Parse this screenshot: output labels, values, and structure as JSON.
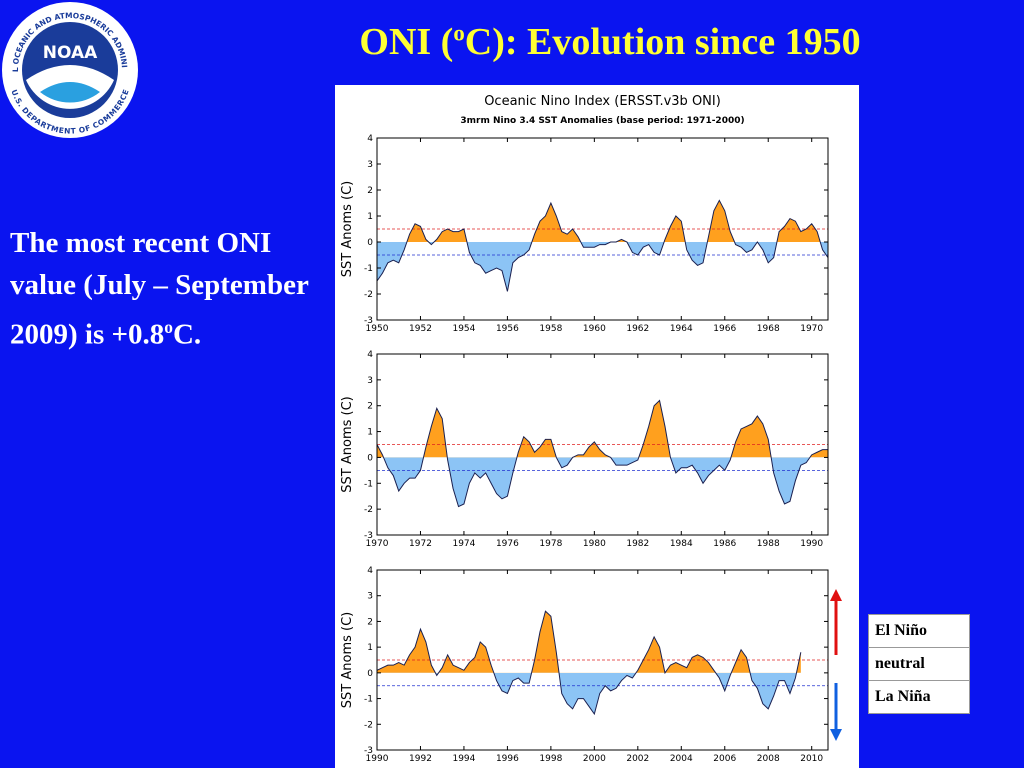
{
  "logo": {
    "name": "NOAA",
    "ring_top": "NATIONAL OCEANIC AND ATMOSPHERIC ADMINISTRATION",
    "ring_bottom": "U.S. DEPARTMENT OF COMMERCE"
  },
  "slide": {
    "title": {
      "before": "ONI (",
      "sup": "o",
      "after": "C): Evolution since 1950"
    },
    "note": {
      "before": "The most recent ONI value (July – September 2009) is +0.8",
      "sup": "o",
      "after": "C."
    },
    "legend": [
      "El Niño",
      "neutral",
      "La Niña"
    ]
  },
  "chart_data": [
    {
      "type": "area",
      "title": "Oceanic Nino Index (ERSST.v3b ONI)",
      "subtitle": "3mrm Nino 3.4 SST Anomalies (base period: 1971-2000)",
      "ylabel": "SST Anoms (C)",
      "color": "#1a2050",
      "fill_above": "#ffa01e",
      "fill_below": "#8cc4f5",
      "thresholds": [
        {
          "value": 0.5,
          "color": "#e02020"
        },
        {
          "value": -0.5,
          "color": "#2030d0"
        }
      ],
      "xlim": [
        1950,
        1970.75
      ],
      "xticks": [
        1950,
        1952,
        1954,
        1956,
        1958,
        1960,
        1962,
        1964,
        1966,
        1968,
        1970
      ],
      "ylim": [
        -3,
        4
      ],
      "yticks": [
        -3,
        -2,
        -1,
        0,
        1,
        2,
        3,
        4
      ],
      "x": [
        1950,
        1950.25,
        1950.5,
        1950.75,
        1951,
        1951.25,
        1951.5,
        1951.75,
        1952,
        1952.25,
        1952.5,
        1952.75,
        1953,
        1953.25,
        1953.5,
        1953.75,
        1954,
        1954.25,
        1954.5,
        1954.75,
        1955,
        1955.25,
        1955.5,
        1955.75,
        1956,
        1956.25,
        1956.5,
        1956.75,
        1957,
        1957.25,
        1957.5,
        1957.75,
        1958,
        1958.25,
        1958.5,
        1958.75,
        1959,
        1959.25,
        1959.5,
        1959.75,
        1960,
        1960.25,
        1960.5,
        1960.75,
        1961,
        1961.25,
        1961.5,
        1961.75,
        1962,
        1962.25,
        1962.5,
        1962.75,
        1963,
        1963.25,
        1963.5,
        1963.75,
        1964,
        1964.25,
        1964.5,
        1964.75,
        1965,
        1965.25,
        1965.5,
        1965.75,
        1966,
        1966.25,
        1966.5,
        1966.75,
        1967,
        1967.25,
        1967.5,
        1967.75,
        1968,
        1968.25,
        1968.5,
        1968.75,
        1969,
        1969.25,
        1969.5,
        1969.75,
        1970,
        1970.25,
        1970.5,
        1970.75
      ],
      "values": [
        -1.5,
        -1.2,
        -0.8,
        -0.7,
        -0.8,
        -0.3,
        0.3,
        0.7,
        0.6,
        0.1,
        -0.1,
        0.1,
        0.4,
        0.5,
        0.4,
        0.4,
        0.5,
        -0.4,
        -0.8,
        -0.9,
        -1.2,
        -1.1,
        -1.0,
        -1.1,
        -1.9,
        -0.8,
        -0.6,
        -0.5,
        -0.3,
        0.3,
        0.8,
        1.0,
        1.5,
        1.0,
        0.4,
        0.3,
        0.5,
        0.2,
        -0.2,
        -0.2,
        -0.2,
        -0.1,
        -0.1,
        0.0,
        0.0,
        0.1,
        0.0,
        -0.4,
        -0.5,
        -0.2,
        -0.1,
        -0.4,
        -0.5,
        0.1,
        0.6,
        1.0,
        0.8,
        -0.3,
        -0.7,
        -0.9,
        -0.8,
        0.2,
        1.2,
        1.6,
        1.2,
        0.4,
        -0.1,
        -0.2,
        -0.4,
        -0.3,
        0.0,
        -0.3,
        -0.8,
        -0.6,
        0.4,
        0.6,
        0.9,
        0.8,
        0.4,
        0.5,
        0.7,
        0.4,
        -0.3,
        -0.6
      ]
    },
    {
      "type": "area",
      "ylabel": "SST Anoms (C)",
      "color": "#1a2050",
      "fill_above": "#ffa01e",
      "fill_below": "#8cc4f5",
      "thresholds": [
        {
          "value": 0.5,
          "color": "#e02020"
        },
        {
          "value": -0.5,
          "color": "#2030d0"
        }
      ],
      "xlim": [
        1970,
        1990.75
      ],
      "xticks": [
        1970,
        1972,
        1974,
        1976,
        1978,
        1980,
        1982,
        1984,
        1986,
        1988,
        1990
      ],
      "ylim": [
        -3,
        4
      ],
      "yticks": [
        -3,
        -2,
        -1,
        0,
        1,
        2,
        3,
        4
      ],
      "x": [
        1970,
        1970.25,
        1970.5,
        1970.75,
        1971,
        1971.25,
        1971.5,
        1971.75,
        1972,
        1972.25,
        1972.5,
        1972.75,
        1973,
        1973.25,
        1973.5,
        1973.75,
        1974,
        1974.25,
        1974.5,
        1974.75,
        1975,
        1975.25,
        1975.5,
        1975.75,
        1976,
        1976.25,
        1976.5,
        1976.75,
        1977,
        1977.25,
        1977.5,
        1977.75,
        1978,
        1978.25,
        1978.5,
        1978.75,
        1979,
        1979.25,
        1979.5,
        1979.75,
        1980,
        1980.25,
        1980.5,
        1980.75,
        1981,
        1981.25,
        1981.5,
        1981.75,
        1982,
        1982.25,
        1982.5,
        1982.75,
        1983,
        1983.25,
        1983.5,
        1983.75,
        1984,
        1984.25,
        1984.5,
        1984.75,
        1985,
        1985.25,
        1985.5,
        1985.75,
        1986,
        1986.25,
        1986.5,
        1986.75,
        1987,
        1987.25,
        1987.5,
        1987.75,
        1988,
        1988.25,
        1988.5,
        1988.75,
        1989,
        1989.25,
        1989.5,
        1989.75,
        1990,
        1990.25,
        1990.5,
        1990.75
      ],
      "values": [
        0.5,
        0.1,
        -0.4,
        -0.7,
        -1.3,
        -1.0,
        -0.8,
        -0.8,
        -0.5,
        0.4,
        1.2,
        1.9,
        1.5,
        -0.1,
        -1.2,
        -1.9,
        -1.8,
        -1.0,
        -0.6,
        -0.8,
        -0.6,
        -1.0,
        -1.4,
        -1.6,
        -1.5,
        -0.6,
        0.2,
        0.8,
        0.6,
        0.2,
        0.4,
        0.7,
        0.7,
        0.0,
        -0.4,
        -0.3,
        0.0,
        0.1,
        0.1,
        0.4,
        0.6,
        0.3,
        0.1,
        0.0,
        -0.3,
        -0.3,
        -0.3,
        -0.2,
        -0.1,
        0.5,
        1.2,
        2.0,
        2.2,
        1.2,
        0.0,
        -0.6,
        -0.4,
        -0.4,
        -0.3,
        -0.6,
        -1.0,
        -0.7,
        -0.5,
        -0.3,
        -0.5,
        -0.1,
        0.6,
        1.1,
        1.2,
        1.3,
        1.6,
        1.3,
        0.7,
        -0.6,
        -1.3,
        -1.8,
        -1.7,
        -0.9,
        -0.3,
        -0.2,
        0.1,
        0.2,
        0.3,
        0.3
      ]
    },
    {
      "type": "area",
      "ylabel": "SST Anoms (C)",
      "color": "#1a2050",
      "fill_above": "#ffa01e",
      "fill_below": "#8cc4f5",
      "thresholds": [
        {
          "value": 0.5,
          "color": "#e02020"
        },
        {
          "value": -0.5,
          "color": "#2030d0"
        }
      ],
      "xlim": [
        1990,
        2010.75
      ],
      "xticks": [
        1990,
        1992,
        1994,
        1996,
        1998,
        2000,
        2002,
        2004,
        2006,
        2008,
        2010
      ],
      "ylim": [
        -3,
        4
      ],
      "yticks": [
        -3,
        -2,
        -1,
        0,
        1,
        2,
        3,
        4
      ],
      "x": [
        1990,
        1990.25,
        1990.5,
        1990.75,
        1991,
        1991.25,
        1991.5,
        1991.75,
        1992,
        1992.25,
        1992.5,
        1992.75,
        1993,
        1993.25,
        1993.5,
        1993.75,
        1994,
        1994.25,
        1994.5,
        1994.75,
        1995,
        1995.25,
        1995.5,
        1995.75,
        1996,
        1996.25,
        1996.5,
        1996.75,
        1997,
        1997.25,
        1997.5,
        1997.75,
        1998,
        1998.25,
        1998.5,
        1998.75,
        1999,
        1999.25,
        1999.5,
        1999.75,
        2000,
        2000.25,
        2000.5,
        2000.75,
        2001,
        2001.25,
        2001.5,
        2001.75,
        2002,
        2002.25,
        2002.5,
        2002.75,
        2003,
        2003.25,
        2003.5,
        2003.75,
        2004,
        2004.25,
        2004.5,
        2004.75,
        2005,
        2005.25,
        2005.5,
        2005.75,
        2006,
        2006.25,
        2006.5,
        2006.75,
        2007,
        2007.25,
        2007.5,
        2007.75,
        2008,
        2008.25,
        2008.5,
        2008.75,
        2009,
        2009.25,
        2009.5
      ],
      "values": [
        0.1,
        0.2,
        0.3,
        0.3,
        0.4,
        0.3,
        0.7,
        1.0,
        1.7,
        1.2,
        0.3,
        -0.1,
        0.2,
        0.7,
        0.3,
        0.2,
        0.1,
        0.4,
        0.6,
        1.2,
        1.0,
        0.3,
        -0.3,
        -0.7,
        -0.8,
        -0.3,
        -0.2,
        -0.4,
        -0.4,
        0.5,
        1.6,
        2.4,
        2.2,
        0.8,
        -0.8,
        -1.2,
        -1.4,
        -1.0,
        -1.0,
        -1.3,
        -1.6,
        -0.8,
        -0.5,
        -0.7,
        -0.6,
        -0.3,
        -0.1,
        -0.2,
        0.1,
        0.5,
        0.9,
        1.4,
        1.0,
        0.0,
        0.3,
        0.4,
        0.3,
        0.2,
        0.6,
        0.7,
        0.6,
        0.4,
        0.1,
        -0.2,
        -0.7,
        -0.1,
        0.4,
        0.9,
        0.6,
        -0.3,
        -0.6,
        -1.2,
        -1.4,
        -0.9,
        -0.3,
        -0.3,
        -0.8,
        -0.2,
        0.8
      ]
    }
  ]
}
